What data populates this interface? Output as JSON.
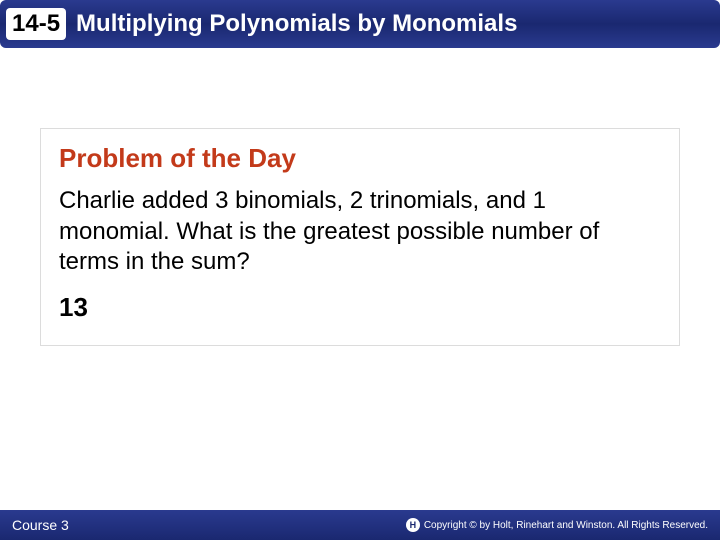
{
  "header": {
    "section_number": "14-5",
    "title": "Multiplying Polynomials by Monomials"
  },
  "content": {
    "heading": "Problem of the Day",
    "body": "Charlie added 3 binomials, 2 trinomials, and 1 monomial. What is the greatest possible number of terms in the sum?",
    "answer": "13"
  },
  "footer": {
    "course": "Course 3",
    "copyright": "Copyright © by Holt, Rinehart and Winston. All Rights Reserved."
  },
  "colors": {
    "header_bg": "#1a2870",
    "heading_color": "#c33a1a",
    "text_color": "#000000",
    "box_border": "#dcdcdc"
  }
}
